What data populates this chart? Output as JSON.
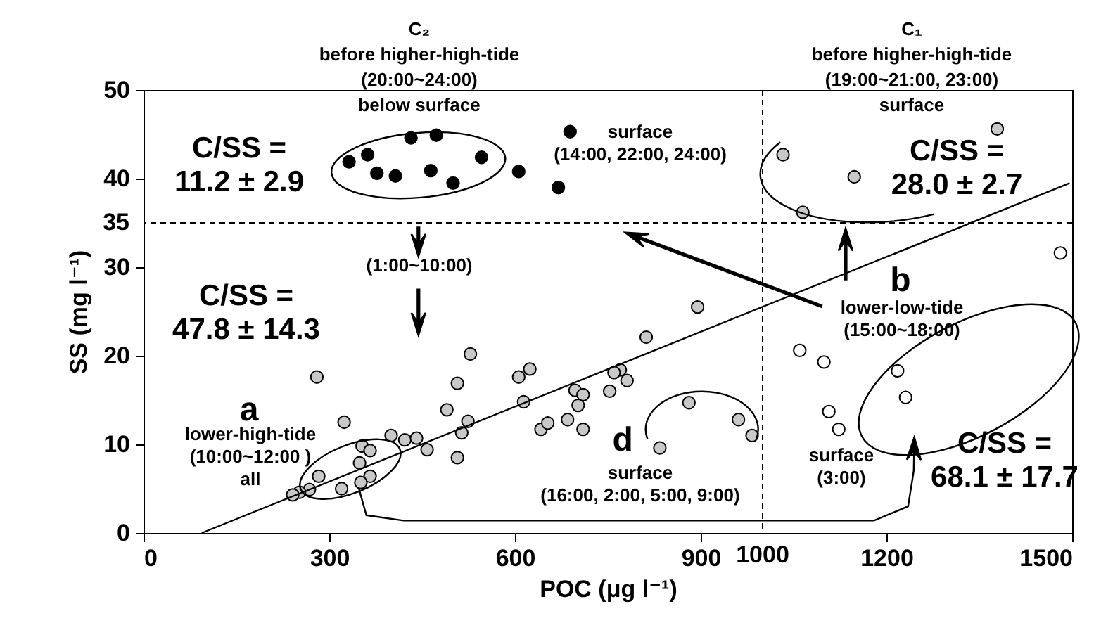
{
  "chart_data": {
    "type": "scatter",
    "xlabel": "POC (μg l⁻¹)",
    "ylabel": "SS (mg l⁻¹)",
    "xlim": [
      0,
      1500
    ],
    "xticks": [
      0,
      300,
      600,
      900,
      1200,
      1500
    ],
    "ylim": [
      0,
      50
    ],
    "yticks": [
      0,
      10,
      20,
      30,
      40,
      50
    ],
    "marker": "circle",
    "grid": false,
    "series": [
      {
        "color": "#000000",
        "x": [
          332,
          362,
          432,
          473,
          377,
          407,
          464,
          500,
          546,
          606,
          689,
          670
        ],
        "values": [
          41.9,
          42.7,
          44.6,
          44.9,
          40.6,
          40.3,
          40.9,
          39.5,
          42.4,
          40.8,
          45.3,
          39.0
        ]
      },
      {
        "color": "#c8c8c8",
        "x": [
          1033,
          1148,
          1065,
          1379,
          881,
          961,
          983,
          834,
          895,
          812,
          770,
          781,
          280,
          528,
          507,
          606,
          624,
          490,
          524,
          514,
          507,
          614,
          760,
          753,
          697,
          710,
          702,
          642,
          653,
          685,
          710,
          324,
          400,
          422,
          441,
          458,
          353,
          366,
          349,
          366,
          351,
          283,
          320,
          268,
          252,
          241
        ],
        "values": [
          42.7,
          40.2,
          36.2,
          45.6,
          14.7,
          12.8,
          11.0,
          9.6,
          25.5,
          22.1,
          18.4,
          17.2,
          17.6,
          20.2,
          16.9,
          17.6,
          18.5,
          13.9,
          12.6,
          11.3,
          8.5,
          14.8,
          18.1,
          16.0,
          16.1,
          15.6,
          14.4,
          11.7,
          12.4,
          12.8,
          11.7,
          12.5,
          11.0,
          10.5,
          10.7,
          9.4,
          9.8,
          9.3,
          7.9,
          6.4,
          5.7,
          6.4,
          5.0,
          4.9,
          4.6,
          4.3
        ]
      },
      {
        "color": "#ffffff",
        "x": [
          1060,
          1099,
          1218,
          1231,
          1107,
          1123,
          1481
        ],
        "values": [
          20.6,
          19.3,
          18.3,
          15.3,
          13.7,
          11.7,
          31.6
        ]
      },
      {
        "type": "line",
        "color": "#000000",
        "line_style": "solid",
        "marker": "none",
        "x": [
          94,
          1496
        ],
        "values": [
          0,
          39.5
        ]
      }
    ],
    "ref_lines": [
      {
        "axis": "y",
        "value": 35,
        "label": "35",
        "line_style": "dashed"
      },
      {
        "axis": "x",
        "value": 1000,
        "label": "1000",
        "line_style": "dashed"
      }
    ],
    "annotations": [
      "C₂\nbefore higher-high-tide\n(20:00~24:00)\nbelow surface",
      "surface\n(14:00, 22:00, 24:00)",
      "C/SS =\n11.2 ± 2.9",
      "C₁\nbefore higher-high-tide\n(19:00~21:00, 23:00)\nsurface",
      "C/SS =\n28.0 ± 2.7",
      "(1:00~10:00)",
      "C/SS =\n47.8 ± 14.3",
      "b",
      "lower-low-tide\n(15:00~18:00)",
      "a",
      "lower-high-tide\n(10:00~12:00 )\nall",
      {
        "text": "d",
        "x": 881,
        "y": 14.7
      },
      {
        "text": "surface\n(16:00, 2:00, 5:00, 9:00)",
        "x": 834,
        "y": 9.6
      },
      "surface\n(3:00)",
      "C/SS =\n68.1 ± 17.7"
    ]
  }
}
